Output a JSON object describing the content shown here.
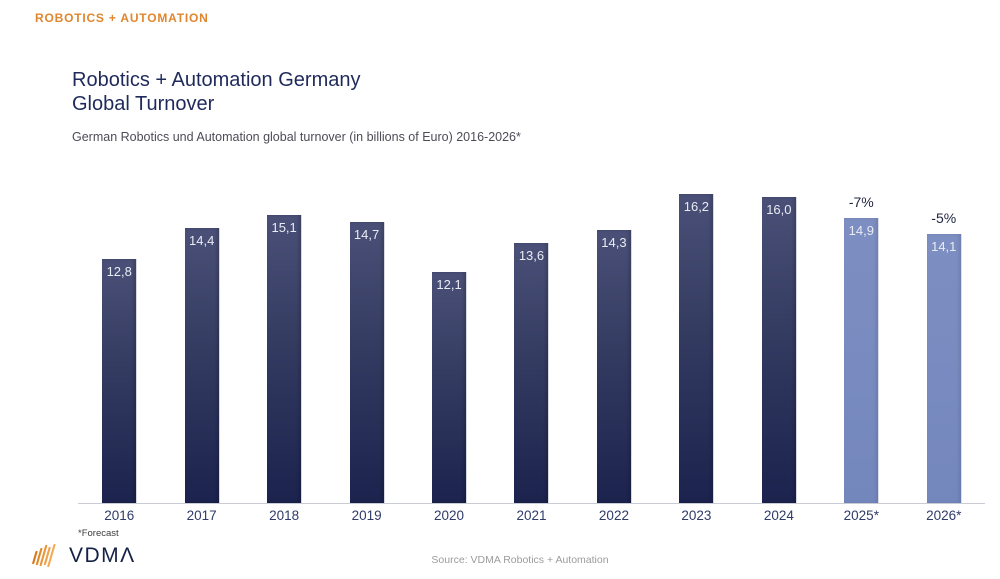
{
  "page": {
    "kicker": "ROBOTICS + AUTOMATION",
    "title_line1": "Robotics + Automation Germany",
    "title_line2": "Global Turnover",
    "subtitle": "German Robotics und Automation global turnover (in billions of Euro) 2016-2026*",
    "footnote": "*Forecast",
    "source": "Source: VDMA Robotics + Automation",
    "logo_wordmark": "VDMΛ"
  },
  "colors": {
    "accent_orange": "#E0862F",
    "title_navy": "#1F2A5B",
    "bar_dark_top": "#4A5077",
    "bar_dark_bottom": "#1B234E",
    "bar_forecast": "#7487BD",
    "axis_line": "#C9CCD4",
    "year_label_navy": "#2F3B69",
    "source_gray": "#9C9C9C"
  },
  "chart_data": {
    "type": "bar",
    "title": "Robotics + Automation Germany Global Turnover",
    "subtitle": "German Robotics und Automation global turnover (in billions of Euro) 2016-2026*",
    "unit": "billions of Euro",
    "categories": [
      "2016",
      "2017",
      "2018",
      "2019",
      "2020",
      "2021",
      "2022",
      "2023",
      "2024",
      "2025*",
      "2026*"
    ],
    "values": [
      12.8,
      14.4,
      15.1,
      14.7,
      12.1,
      13.6,
      14.3,
      16.2,
      16.0,
      14.9,
      14.1
    ],
    "value_labels": [
      "12,8",
      "14,4",
      "15,1",
      "14,7",
      "12,1",
      "13,6",
      "14,3",
      "16,2",
      "16,0",
      "14,9",
      "14,1"
    ],
    "forecast_flags": [
      false,
      false,
      false,
      false,
      false,
      false,
      false,
      false,
      false,
      true,
      true
    ],
    "annotations": [
      "",
      "",
      "",
      "",
      "",
      "",
      "",
      "",
      "",
      "-7%",
      "-5%"
    ],
    "xlabel": "",
    "ylabel": "",
    "ylim": [
      0,
      17
    ],
    "grid": false,
    "legend": null
  }
}
